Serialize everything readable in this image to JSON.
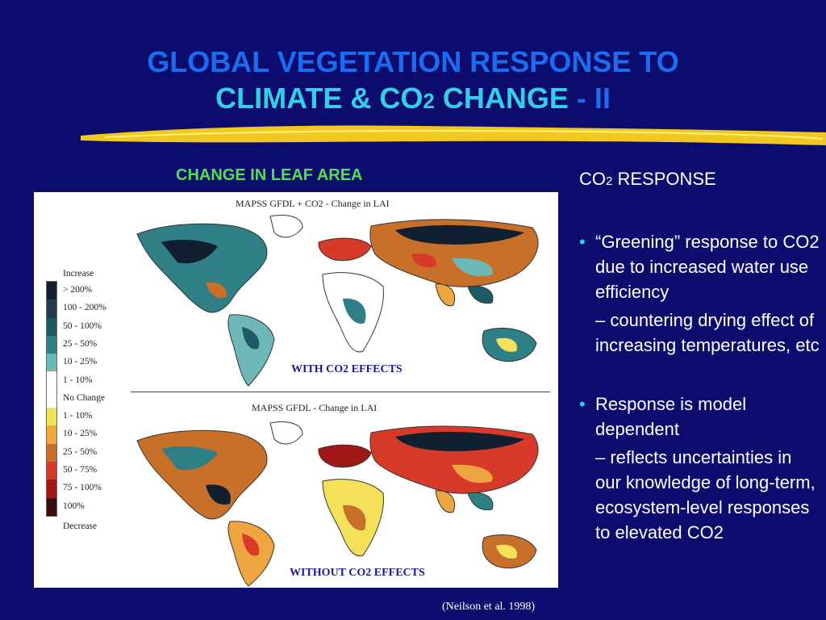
{
  "title": {
    "line1": "GLOBAL VEGETATION RESPONSE TO",
    "line2_a": "CLIMATE & CO",
    "line2_sub": "2",
    "line2_b": " CHANGE",
    "line2_c": " - II"
  },
  "left": {
    "heading": "CHANGE IN LEAF AREA",
    "map_top_title": "MAPSS GFDL + CO2  - Change in LAI",
    "map_top_caption": "WITH CO2 EFFECTS",
    "map_bottom_title": "MAPSS GFDL  - Change in LAI",
    "map_bottom_caption": "WITHOUT CO2 EFFECTS",
    "legend": {
      "top_label": "Increase",
      "bottom_label": "Decrease",
      "items": [
        "> 200%",
        "100 - 200%",
        "50 - 100%",
        "25 - 50%",
        "10 - 25%",
        "1 - 10%",
        "No Change",
        "1 - 10%",
        "10 - 25%",
        "25 - 50%",
        "50 - 75%",
        "75 - 100%",
        "100%"
      ],
      "colors": [
        "#102030",
        "#1f3f4f",
        "#1c5a66",
        "#2e7f86",
        "#6fb8b8",
        "#ffffff",
        "#ffffff",
        "#f5e05a",
        "#f0a640",
        "#c8702a",
        "#d83a2a",
        "#a01818",
        "#3a0c0c"
      ]
    },
    "citation": "(Neilson et al. 1998)"
  },
  "right": {
    "heading_a": "CO",
    "heading_sub": "2",
    "heading_b": " RESPONSE",
    "b1": "“Greening” response to CO2 due to increased water use efficiency",
    "b1_sub": "– countering drying effect of increasing temperatures, etc",
    "b2": "Response is model dependent",
    "b2_sub": "– reflects uncertainties in our knowledge of long-term, ecosystem-level responses to elevated CO2"
  }
}
